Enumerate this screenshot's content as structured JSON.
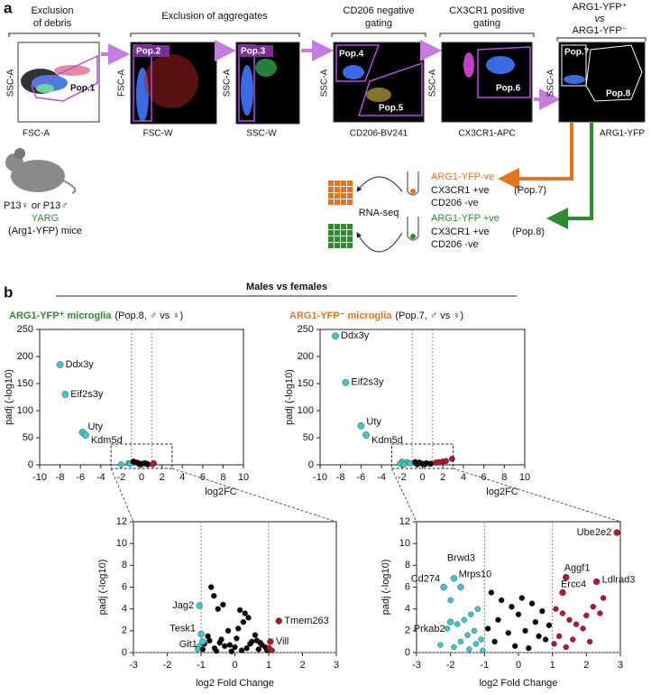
{
  "panel_a": {
    "label": "a",
    "headers": [
      [
        "Exclusion",
        "of debris"
      ],
      [
        "Exclusion of aggregates"
      ],
      [
        "CD206 negative",
        "gating"
      ],
      [
        "CX3CR1 positive",
        "gating"
      ],
      [
        "ARG1-YFP⁺",
        "vs",
        "ARG1-YFP⁻"
      ]
    ],
    "plots": [
      {
        "x_label": "FSC-A",
        "y_label": "SSC-A",
        "populations": [
          "Pop.1"
        ]
      },
      {
        "x_label": "FSC-W",
        "y_label": "FSC-A",
        "populations": [
          "Pop.2"
        ]
      },
      {
        "x_label": "SSC-W",
        "y_label": "SSC-A",
        "populations": [
          "Pop.3"
        ]
      },
      {
        "x_label": "CD206-BV241",
        "y_label": "SSC-A",
        "populations": [
          "Pop.4",
          "Pop.5"
        ]
      },
      {
        "x_label": "CX3CR1-APC",
        "y_label": "SSC-A",
        "populations": [
          "Pop.6"
        ]
      },
      {
        "x_label": "ARG1-YFP",
        "y_label": "SSC-A",
        "populations": [
          "Pop.7",
          "Pop.8"
        ]
      }
    ],
    "mouse": {
      "line1": "P13♀ or P13♂",
      "line2": "YARG",
      "line3": "(Arg1-YFP) mice"
    },
    "method": "RNA-seq",
    "samples": [
      {
        "name": "ARG1-YFP-ve",
        "marker1": "CX3CR1 +ve",
        "population": "(Pop.7)",
        "marker2": "CD206 -ve"
      },
      {
        "name": "ARG1-YFP +ve",
        "marker1": "CX3CR1 +ve",
        "population": "(Pop.8)",
        "marker2": "CD206 -ve"
      }
    ]
  },
  "panel_b": {
    "label": "b",
    "comparison": "Males vs females"
  },
  "chart_data": [
    {
      "type": "scatter",
      "title": "ARG1-YFP⁺ microglia",
      "subtitle": "(Pop.8, ♂ vs ♀)",
      "title_color": "#2e8b2e",
      "x_label": "log2FC",
      "y_label": "padj (-log10)",
      "xlim": [
        -10,
        10
      ],
      "ylim": [
        0,
        250
      ],
      "xticks": [
        -10,
        -8,
        -6,
        -4,
        -2,
        0,
        2,
        4,
        6,
        8,
        10
      ],
      "yticks": [
        0,
        50,
        100,
        150,
        200,
        250
      ],
      "vlines": [
        -1,
        1
      ],
      "series": [
        {
          "color": "#3fc7c7",
          "x": [
            -1.3,
            -1.1,
            -2.0
          ],
          "values": [
            3,
            2,
            1
          ]
        },
        {
          "color": "#000000",
          "x": [
            -0.8,
            -0.4,
            0,
            0.3,
            0.6,
            -0.2,
            0.5
          ],
          "values": [
            6,
            4,
            2,
            3,
            1,
            1,
            2
          ]
        },
        {
          "color": "#b2182b",
          "x": [
            1.2,
            1.1
          ],
          "values": [
            3,
            1
          ]
        }
      ],
      "annotations": [
        {
          "text": "Ddx3y",
          "x": -8,
          "y": 185,
          "color": "#3fc7c7"
        },
        {
          "text": "Eif2s3y",
          "x": -7.5,
          "y": 130,
          "color": "#3fc7c7"
        },
        {
          "text": "Uty",
          "x": -5.8,
          "y": 60,
          "color": "#3fc7c7"
        },
        {
          "text": "Kdm5d",
          "x": -5.5,
          "y": 55,
          "color": "#3fc7c7"
        }
      ]
    },
    {
      "type": "scatter",
      "title": "ARG1-YFP⁻ microglia",
      "subtitle": "(Pop.7, ♂ vs ♀)",
      "title_color": "#e8731e",
      "x_label": "log2FC",
      "y_label": "padj (-log10)",
      "xlim": [
        -10,
        10
      ],
      "ylim": [
        0,
        250
      ],
      "xticks": [
        -10,
        -8,
        -6,
        -4,
        -2,
        0,
        2,
        4,
        6,
        8,
        10
      ],
      "yticks": [
        0,
        50,
        100,
        150,
        200,
        250
      ],
      "vlines": [
        -1,
        1
      ],
      "series": [
        {
          "color": "#3fc7c7",
          "x": [
            -2,
            -1.5,
            -1.2,
            -2.2,
            -1.8
          ],
          "values": [
            6,
            5,
            3,
            2,
            1
          ]
        },
        {
          "color": "#000000",
          "x": [
            -0.7,
            -0.3,
            0,
            0.4,
            0.8,
            -0.5,
            0.2
          ],
          "values": [
            5,
            4,
            2,
            3,
            2,
            1,
            1
          ]
        },
        {
          "color": "#b2182b",
          "x": [
            1.3,
            1.6,
            2.0,
            2.3,
            2.9
          ],
          "values": [
            4,
            5,
            6,
            7,
            11
          ]
        }
      ],
      "annotations": [
        {
          "text": "Ddx3y",
          "x": -8.5,
          "y": 238,
          "color": "#3fc7c7"
        },
        {
          "text": "Eif2s3y",
          "x": -7.5,
          "y": 152,
          "color": "#3fc7c7"
        },
        {
          "text": "Uty",
          "x": -6,
          "y": 72,
          "color": "#3fc7c7"
        },
        {
          "text": "Kdm5d",
          "x": -5.5,
          "y": 55,
          "color": "#3fc7c7"
        }
      ]
    },
    {
      "type": "scatter",
      "x_label": "log2 Fold Change",
      "y_label": "padj (-log10)",
      "xlim": [
        -3,
        3
      ],
      "ylim": [
        0,
        12
      ],
      "xticks": [
        -3,
        -2,
        -1,
        0,
        1,
        2,
        3
      ],
      "yticks": [
        0,
        2,
        4,
        6,
        8,
        10,
        12
      ],
      "vlines": [
        -1,
        1
      ],
      "hline": 0,
      "series": [
        {
          "color": "#3fc7c7",
          "x": [
            -1.05,
            -1.1
          ],
          "values": [
            0.6,
            0.3
          ]
        },
        {
          "color": "#000000",
          "x": [
            -0.7,
            -0.62,
            -0.35,
            -0.5,
            0.15,
            0.3,
            0.4,
            0.25,
            0.1,
            -0.2,
            -0.8,
            0.6,
            -0.4,
            0.5,
            -0.9,
            0.8,
            0,
            -0.6,
            0.7,
            0.2,
            -0.1,
            0.9,
            -0.3,
            0.45,
            -0.75,
            0.05,
            -0.45,
            0.35,
            -0.15,
            0.65,
            -0.95,
            0.95,
            -0.55,
            0.75
          ],
          "values": [
            6,
            5.2,
            4.4,
            4,
            3.9,
            3.6,
            3.2,
            2.8,
            2.2,
            2,
            1.5,
            1.6,
            1.2,
            1.0,
            0.8,
            0.7,
            0.5,
            0.4,
            0.3,
            0.2,
            0.1,
            0.5,
            0.6,
            0.8,
            1.1,
            1.3,
            0.9,
            0.4,
            0.7,
            1.1,
            0.3,
            0.2,
            0.15,
            0.9
          ]
        },
        {
          "color": "#b2182b",
          "x": [
            1.02,
            1.1
          ],
          "values": [
            0.4,
            0.2
          ]
        }
      ],
      "annotations": [
        {
          "text": "Jag2",
          "x": -1.05,
          "y": 4.3,
          "color": "#3fc7c7"
        },
        {
          "text": "Tesk1",
          "x": -1.0,
          "y": 1.7,
          "color": "#3fc7c7"
        },
        {
          "text": "Git1",
          "x": -0.95,
          "y": 1.0,
          "color": "#3fc7c7"
        },
        {
          "text": "Tmem263",
          "x": 1.3,
          "y": 2.9,
          "color": "#b2182b"
        },
        {
          "text": "Vill",
          "x": 1.05,
          "y": 1.0,
          "color": "#b2182b"
        }
      ]
    },
    {
      "type": "scatter",
      "x_label": "log2 Fold Change",
      "y_label": "padj (-log10)",
      "xlim": [
        -3,
        3
      ],
      "ylim": [
        0,
        12
      ],
      "xticks": [
        -3,
        -2,
        -1,
        0,
        1,
        2,
        3
      ],
      "yticks": [
        0,
        2,
        4,
        6,
        8,
        10,
        12
      ],
      "vlines": [
        -1,
        1
      ],
      "hline": 0,
      "series": [
        {
          "color": "#3fc7c7",
          "x": [
            -1.2,
            -1.4,
            -1.6,
            -1.8,
            -2.1,
            -1.3,
            -1.5,
            -1.1,
            -1.7,
            -2.3,
            -1.9,
            -1.25,
            -1.45,
            -1.05,
            -2.0
          ],
          "values": [
            4,
            3.5,
            3,
            2.6,
            2.2,
            2,
            1.6,
            1.2,
            1.0,
            0.7,
            0.5,
            0.8,
            0.3,
            0.2,
            4.8
          ]
        },
        {
          "color": "#000000",
          "x": [
            -0.8,
            -0.5,
            -0.2,
            0.1,
            0.4,
            0.7,
            -0.6,
            0,
            0.5,
            -0.9,
            0.9,
            -0.3,
            0.2,
            0.6,
            -0.7,
            0.8,
            -0.1,
            0.3
          ],
          "values": [
            5.5,
            4.8,
            4.2,
            5,
            4.5,
            3.8,
            3,
            3.5,
            2.8,
            2.2,
            2.5,
            1.8,
            2,
            1.5,
            1,
            1.2,
            0.6,
            0.4
          ]
        },
        {
          "color": "#b2182b",
          "x": [
            1.1,
            1.3,
            1.5,
            1.7,
            2.0,
            2.2,
            2.5,
            1.2,
            1.6,
            1.9,
            2.4,
            1.05,
            1.4,
            2.1
          ],
          "values": [
            4,
            3.6,
            3,
            2.6,
            3.4,
            4.2,
            5,
            1.5,
            1.2,
            2.2,
            3.6,
            0.8,
            0.5,
            1
          ]
        }
      ],
      "annotations": [
        {
          "text": "Ube2e2",
          "x": 2.9,
          "y": 11,
          "color": "#b2182b"
        },
        {
          "text": "Aggf1",
          "x": 1.4,
          "y": 6.9,
          "color": "#b2182b"
        },
        {
          "text": "Ldlrad3",
          "x": 2.3,
          "y": 6.5,
          "color": "#b2182b"
        },
        {
          "text": "Ercc4",
          "x": 1.3,
          "y": 5.5,
          "color": "#b2182b"
        },
        {
          "text": "Brwd3",
          "x": -1.9,
          "y": 6.8,
          "color": "#3fc7c7"
        },
        {
          "text": "Cd274",
          "x": -2.2,
          "y": 6,
          "color": "#3fc7c7"
        },
        {
          "text": "Mrps10",
          "x": -1.7,
          "y": 6,
          "color": "#3fc7c7"
        },
        {
          "text": "Prkab2",
          "x": -2.0,
          "y": 2.8,
          "color": "#3fc7c7"
        }
      ]
    }
  ]
}
